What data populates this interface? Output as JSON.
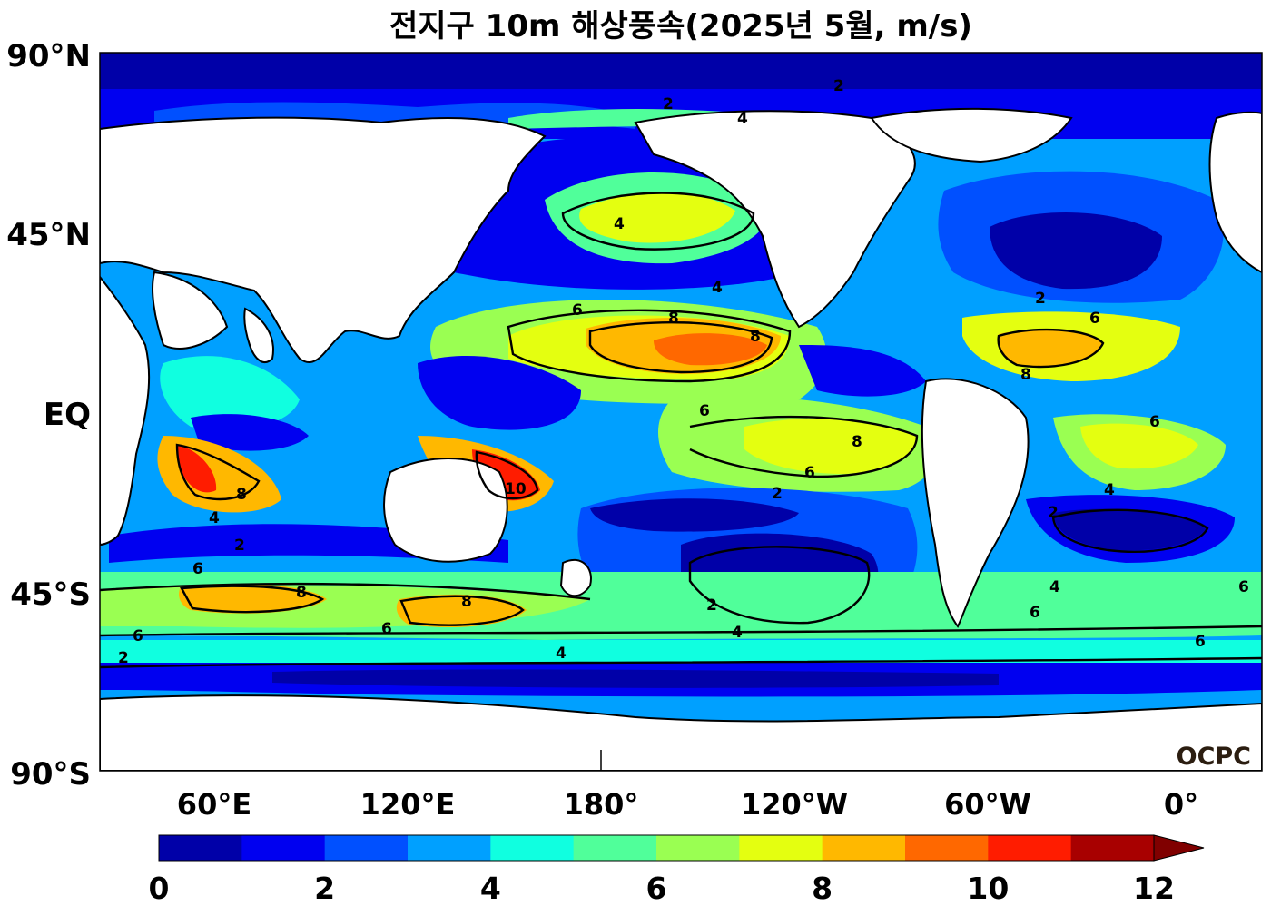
{
  "title": "전지구 10m 해상풍속(2025년 5월, m/s)",
  "logo": "OCPC",
  "lat_ticks": [
    "90°N",
    "45°N",
    "EQ",
    "45°S",
    "90°S"
  ],
  "lon_ticks": [
    "60°E",
    "120°E",
    "180°",
    "120°W",
    "60°W",
    "0°"
  ],
  "colorbar": {
    "min": 0,
    "max": 12,
    "step": 1,
    "extend": "max",
    "tick_labels": [
      "0",
      "2",
      "4",
      "6",
      "8",
      "10",
      "12"
    ],
    "colors": [
      "#0000a8",
      "#0000f0",
      "#0050ff",
      "#00a0ff",
      "#10ffe0",
      "#50ff9a",
      "#9aff52",
      "#e4ff10",
      "#ffb800",
      "#ff6800",
      "#ff1c00",
      "#a80000"
    ],
    "extend_color": "#800000"
  },
  "contour_levels": [
    2,
    4,
    6,
    8,
    10
  ],
  "land_color": "#ffffff"
}
